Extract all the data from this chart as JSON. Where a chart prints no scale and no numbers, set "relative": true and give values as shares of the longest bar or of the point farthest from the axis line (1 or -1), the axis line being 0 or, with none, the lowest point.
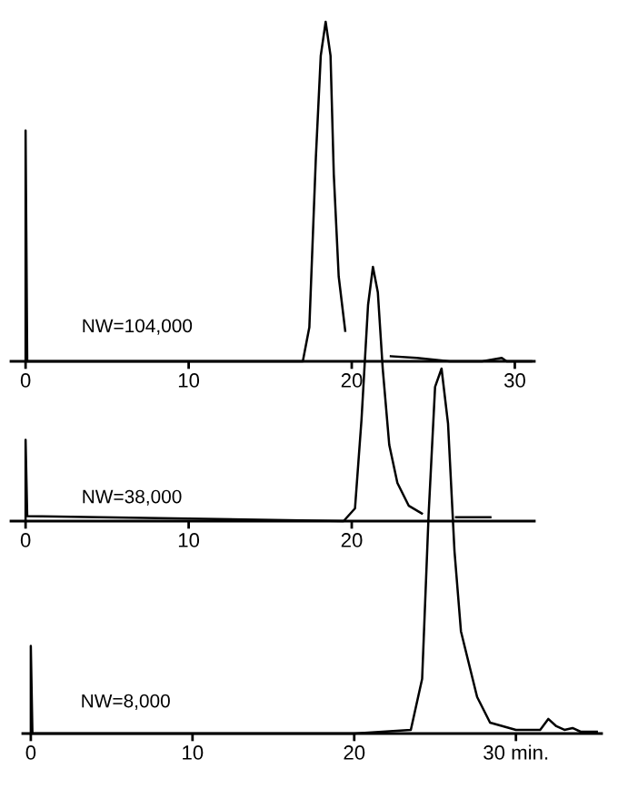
{
  "chart_data": [
    {
      "type": "line",
      "relative": true,
      "tick_labels": "x",
      "xlim": [
        -0.9,
        31.2
      ],
      "xticks": [
        0,
        10,
        20,
        30
      ],
      "annotations": [
        "NW=104,000"
      ],
      "x": [
        0,
        0,
        0.1,
        5,
        10,
        15,
        17,
        17.4,
        17.8,
        18.1,
        18.4,
        18.7,
        18.9,
        19.2,
        19.6,
        21,
        22.4,
        24,
        26,
        28,
        29.2,
        29.5,
        31
      ],
      "series": [
        {
          "color": "#000000",
          "values": [
            0,
            0.68,
            0,
            0,
            0,
            0,
            0,
            0.1,
            0.6,
            0.9,
            1.0,
            0.9,
            0.55,
            0.25,
            0.09,
            null,
            0.015,
            0.01,
            0,
            0,
            0.01,
            0,
            0
          ]
        }
      ]
    },
    {
      "type": "line",
      "relative": true,
      "tick_labels": "x",
      "xlim": [
        -0.9,
        31.2
      ],
      "xticks": [
        0,
        10,
        20
      ],
      "annotations": [
        "NW=38,000"
      ],
      "x": [
        0,
        0,
        0.1,
        10,
        19.5,
        20.2,
        20.6,
        21.0,
        21.3,
        21.6,
        21.9,
        22.3,
        22.8,
        23.5,
        24.3,
        25.4,
        26.4,
        28.5
      ],
      "series": [
        {
          "color": "#000000",
          "values": [
            0,
            0.32,
            0.02,
            0.01,
            0,
            0.05,
            0.4,
            0.85,
            1.0,
            0.9,
            0.6,
            0.3,
            0.15,
            0.06,
            0.03,
            null,
            0.015,
            0.015
          ]
        }
      ]
    },
    {
      "type": "line",
      "relative": true,
      "tick_labels": "x",
      "xlim": [
        -0.5,
        35.3
      ],
      "xticks": [
        0,
        10,
        20,
        {
          "value": 30,
          "label": "30 min."
        }
      ],
      "annotations": [
        "NW=8,000"
      ],
      "x": [
        0,
        0,
        0.1,
        10,
        20,
        23.5,
        24.2,
        24.6,
        25.0,
        25.4,
        25.8,
        26.2,
        26.6,
        27.6,
        28.4,
        30,
        31.5,
        32.0,
        32.5,
        33.0,
        33.5,
        34.0,
        35
      ],
      "series": [
        {
          "color": "#000000",
          "values": [
            0,
            0.24,
            0,
            0,
            0,
            0.01,
            0.15,
            0.6,
            0.95,
            1.0,
            0.85,
            0.5,
            0.28,
            0.1,
            0.03,
            0.01,
            0.01,
            0.04,
            0.02,
            0.01,
            0.015,
            0.005,
            0.005
          ]
        }
      ]
    }
  ]
}
